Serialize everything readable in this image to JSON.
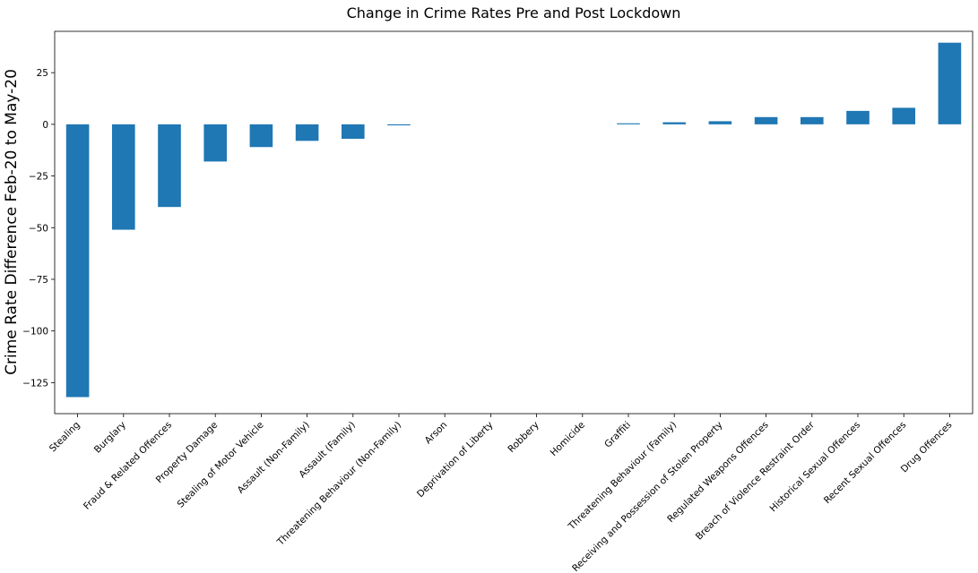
{
  "chart_data": {
    "type": "bar",
    "title": "Change in Crime Rates Pre and Post Lockdown",
    "xlabel": "",
    "ylabel": "Crime Rate Difference Feb-20 to May-20",
    "ylim": [
      -140,
      45
    ],
    "yticks": [
      25,
      0,
      -25,
      -50,
      -75,
      -100,
      -125
    ],
    "grid": false,
    "bar_color": "#1f77b4",
    "categories": [
      "Stealing",
      "Burglary",
      "Fraud & Related Offences",
      "Property Damage",
      "Stealing of Motor Vehicle",
      "Assault (Non-Family)",
      "Assault (Family)",
      "Threatening Behaviour (Non-Family)",
      "Arson",
      "Deprivation of Liberty",
      "Robbery",
      "Homicide",
      "Graffiti",
      "Threatening Behaviour (Family)",
      "Receiving and Possession of Stolen Property",
      "Regulated Weapons Offences",
      "Breach of Violence Restraint Order",
      "Historical Sexual Offences",
      "Recent Sexual Offences",
      "Drug Offences"
    ],
    "values": [
      -132,
      -51,
      -40,
      -18,
      -11,
      -8,
      -7,
      -0.5,
      0,
      0,
      0,
      0,
      0.5,
      1,
      1.5,
      3.5,
      3.5,
      6.5,
      8,
      39.5
    ]
  }
}
